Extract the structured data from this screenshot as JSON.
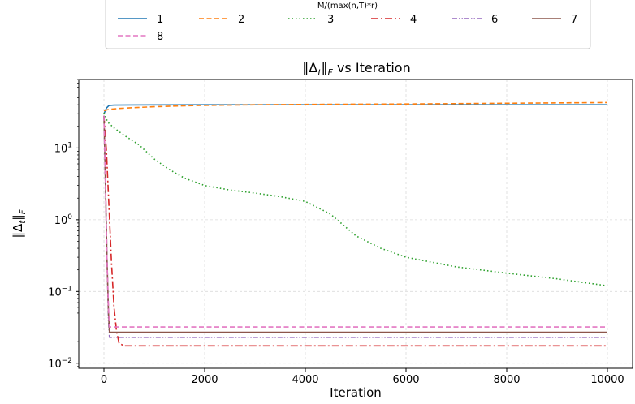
{
  "chart_data": {
    "type": "line",
    "title": "‖Δₜ‖_F vs Iteration",
    "title_parts": {
      "pre": "‖Δ",
      "sub_t": "t",
      "mid": "‖",
      "sub_f": "F",
      "post": " vs Iteration"
    },
    "xlabel": "Iteration",
    "ylabel_parts": {
      "pre": "‖Δ",
      "sub_t": "t",
      "mid": "‖",
      "sub_f": "F"
    },
    "xlim": [
      -500,
      10500
    ],
    "ylim": [
      0.0085,
      90
    ],
    "yscale": "log",
    "grid": true,
    "x_ticks": [
      0,
      2000,
      4000,
      6000,
      8000,
      10000
    ],
    "x_tick_labels": [
      "0",
      "2000",
      "4000",
      "6000",
      "8000",
      "10000"
    ],
    "y_ticks": [
      0.01,
      0.1,
      1,
      10
    ],
    "y_tick_bases": [
      "10",
      "10",
      "10",
      "10"
    ],
    "y_tick_exponents": [
      "−2",
      "−1",
      "0",
      "1"
    ],
    "legend": {
      "title": "M/(max(n,T)*r)",
      "placement": "top-center",
      "ncol": 6
    },
    "series": [
      {
        "name": "1",
        "color": "#1f77b4",
        "dash": "solid",
        "x": [
          0,
          50,
          100,
          200,
          500,
          1000,
          2000,
          4000,
          6000,
          8000,
          10000
        ],
        "y": [
          30,
          36,
          39,
          39.5,
          39.7,
          39.8,
          39.9,
          40,
          40,
          40,
          40
        ]
      },
      {
        "name": "2",
        "color": "#ff7f0e",
        "dash": "dashed",
        "x": [
          0,
          100,
          300,
          600,
          1000,
          1500,
          2000,
          3000,
          4000,
          6000,
          8000,
          10000
        ],
        "y": [
          33,
          34.5,
          35.5,
          36.5,
          37.5,
          38.5,
          39.2,
          40,
          40.5,
          41,
          42,
          43
        ]
      },
      {
        "name": "3",
        "color": "#2ca02c",
        "dash": "dotted",
        "x": [
          0,
          50,
          100,
          200,
          400,
          700,
          1000,
          1300,
          1600,
          2000,
          2500,
          3000,
          3500,
          4000,
          4500,
          5000,
          5500,
          6000,
          7000,
          8000,
          9000,
          10000
        ],
        "y": [
          31,
          25,
          22,
          19,
          15,
          11,
          7,
          5,
          3.8,
          3,
          2.6,
          2.35,
          2.1,
          1.8,
          1.2,
          0.6,
          0.4,
          0.3,
          0.22,
          0.18,
          0.15,
          0.12
        ]
      },
      {
        "name": "4",
        "color": "#d62728",
        "dash": "dashdot",
        "x": [
          0,
          50,
          100,
          150,
          200,
          250,
          300,
          400,
          1000,
          4000,
          10000
        ],
        "y": [
          28,
          9,
          1.5,
          0.25,
          0.06,
          0.028,
          0.019,
          0.0175,
          0.0175,
          0.0175,
          0.0175
        ]
      },
      {
        "name": "6",
        "color": "#9467bd",
        "dash": "dashdotdot",
        "x": [
          0,
          30,
          60,
          90,
          110,
          200,
          1000,
          10000
        ],
        "y": [
          28,
          3,
          0.3,
          0.04,
          0.023,
          0.023,
          0.023,
          0.023
        ]
      },
      {
        "name": "7",
        "color": "#8c564b",
        "dash": "solid",
        "x": [
          0,
          30,
          60,
          90,
          110,
          200,
          1000,
          10000
        ],
        "y": [
          28,
          3,
          0.3,
          0.05,
          0.027,
          0.027,
          0.027,
          0.027
        ]
      },
      {
        "name": "8",
        "color": "#e377c2",
        "dash": "dashed",
        "x": [
          0,
          30,
          60,
          90,
          110,
          200,
          1000,
          10000
        ],
        "y": [
          28,
          3,
          0.3,
          0.06,
          0.032,
          0.032,
          0.032,
          0.032
        ]
      }
    ]
  }
}
